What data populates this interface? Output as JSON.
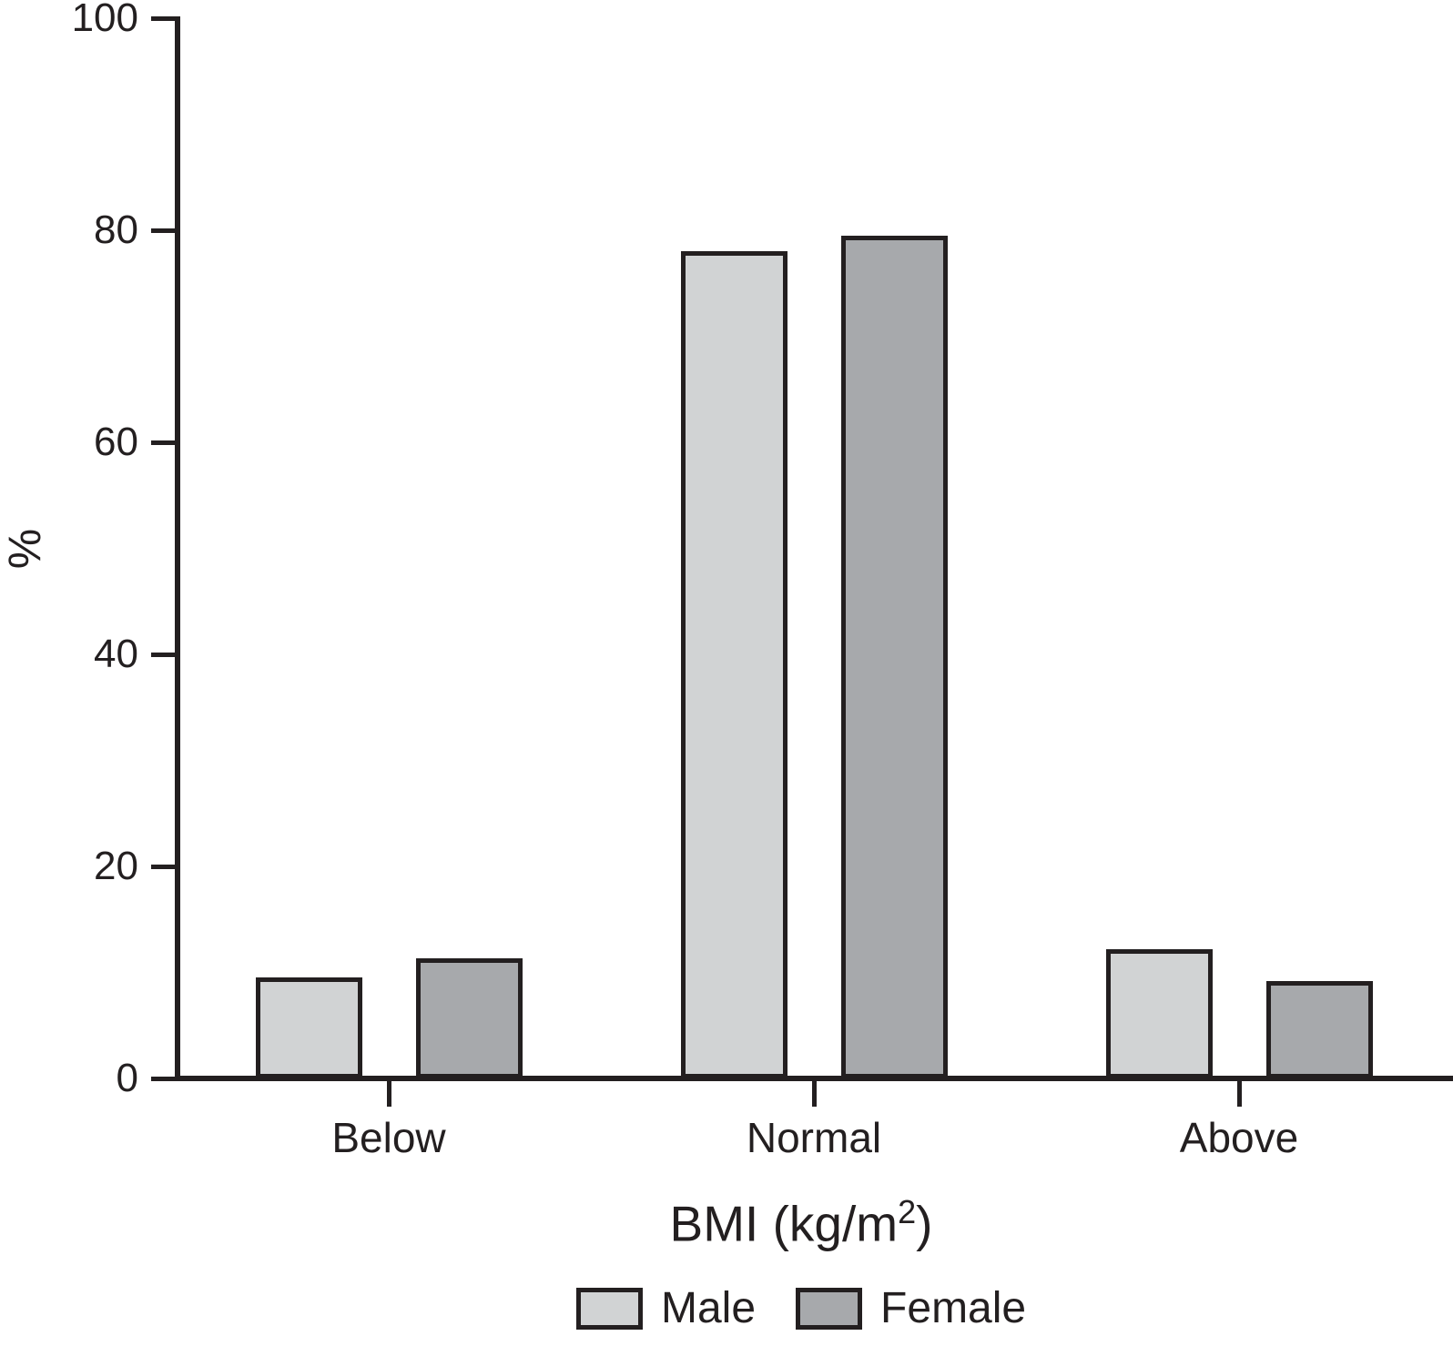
{
  "chart_data": {
    "type": "bar",
    "title": "",
    "categories": [
      "Below",
      "Normal",
      "Above"
    ],
    "series": [
      {
        "name": "Male",
        "color": "#d1d3d4",
        "values": [
          9.5,
          78,
          12.2
        ]
      },
      {
        "name": "Female",
        "color": "#a7a9ac",
        "values": [
          11.3,
          79.5,
          9.2
        ]
      }
    ],
    "xlabel_base": "BMI (kg/m",
    "xlabel_sup": "2",
    "xlabel_close": ")",
    "ylabel": "%",
    "ylim": [
      0,
      100
    ],
    "yticks": [
      0,
      20,
      40,
      60,
      80,
      100
    ],
    "grid": false,
    "legend_position": "bottom",
    "ink_color": "#231f20",
    "background_color": "#ffffff"
  }
}
